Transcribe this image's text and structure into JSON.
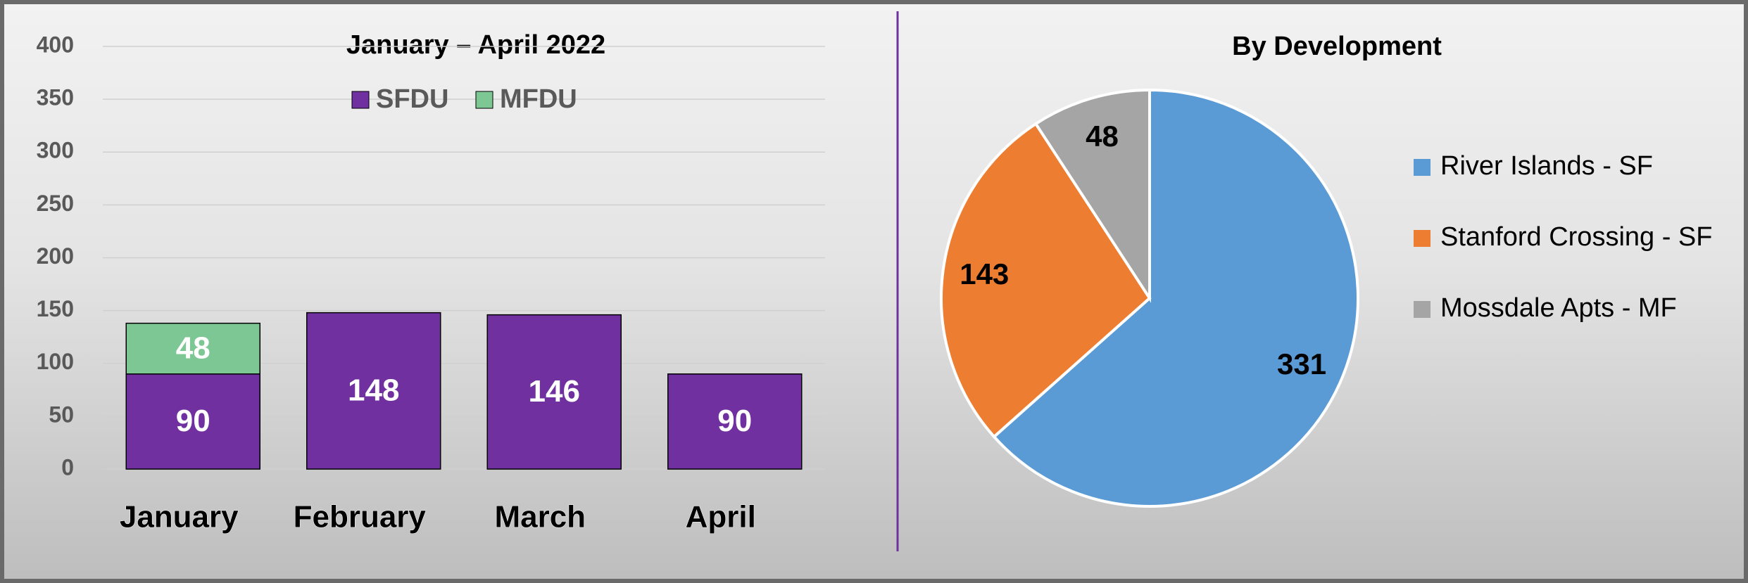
{
  "chart_data": [
    {
      "type": "bar",
      "title": "January – April 2022",
      "categories": [
        "January",
        "February",
        "March",
        "April"
      ],
      "series": [
        {
          "name": "SFDU",
          "color": "#7030a0",
          "values": [
            90,
            148,
            146,
            90
          ]
        },
        {
          "name": "MFDU",
          "color": "#7dc795",
          "values": [
            48,
            null,
            null,
            null
          ]
        }
      ],
      "ylim": [
        0,
        400
      ],
      "yticks": [
        0,
        50,
        100,
        150,
        200,
        250,
        300,
        350,
        400
      ],
      "grid": true,
      "stacked": true
    },
    {
      "type": "pie",
      "title": "By Development",
      "categories": [
        "River Islands - SF",
        "Stanford Crossing - SF",
        "Mossdale Apts - MF"
      ],
      "values": [
        331,
        143,
        48
      ],
      "colors": [
        "#5b9bd5",
        "#ed7d31",
        "#a5a5a5"
      ],
      "legend": "right"
    }
  ]
}
